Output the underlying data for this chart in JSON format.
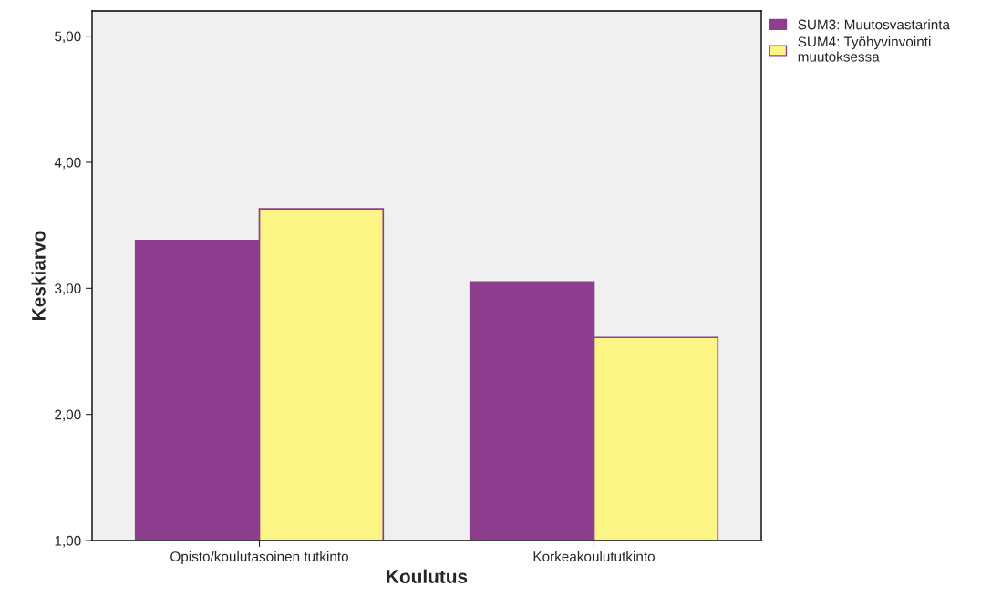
{
  "chart_data": {
    "type": "bar",
    "xlabel": "Koulutus",
    "ylabel": "Keskiarvo",
    "categories": [
      "Opisto/koulutasoinen tutkinto",
      "Korkeakoulututkinto"
    ],
    "series": [
      {
        "name": "SUM3: Muutosvastarinta",
        "color": "#8e3e8e",
        "values": [
          3.38,
          3.05
        ]
      },
      {
        "name": "SUM4: Työhyvinvointi\nmuutoksessa",
        "color": "#faf584",
        "values": [
          3.63,
          2.61
        ]
      }
    ],
    "ylim": [
      1.0,
      5.2
    ],
    "yticks": [
      {
        "value": 1,
        "label": "1,00"
      },
      {
        "value": 2,
        "label": "2,00"
      },
      {
        "value": 3,
        "label": "3,00"
      },
      {
        "value": 4,
        "label": "4,00"
      },
      {
        "value": 5,
        "label": "5,00"
      }
    ],
    "grid": false,
    "legend": "top right"
  }
}
